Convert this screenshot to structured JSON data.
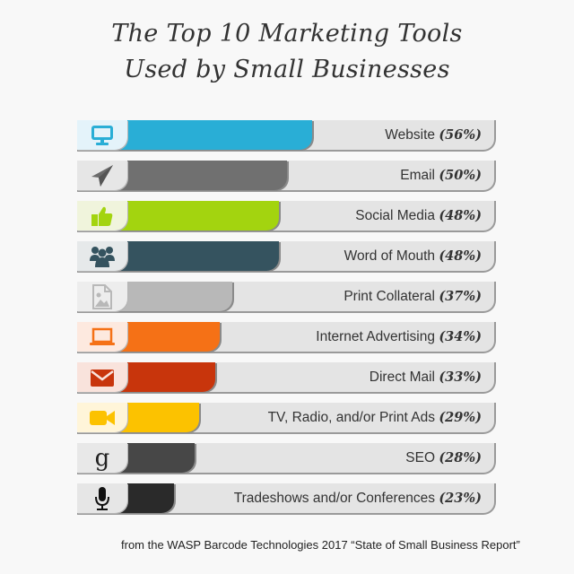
{
  "title": {
    "line1": "The Top 10 Marketing Tools",
    "line2": "Used by Small Businesses"
  },
  "source": "from the WASP Barcode Technologies 2017 “State of Small Business Report”",
  "chart_data": {
    "type": "bar",
    "orientation": "horizontal",
    "title": "The Top 10 Marketing Tools Used by Small Businesses",
    "xlabel": "",
    "ylabel": "",
    "unit": "%",
    "categories": [
      "Website",
      "Email",
      "Social Media",
      "Word of Mouth",
      "Print Collateral",
      "Internet Advertising",
      "Direct Mail",
      "TV, Radio, and/or Print Ads",
      "SEO",
      "Tradeshows and/or Conferences"
    ],
    "values": [
      56,
      50,
      48,
      48,
      37,
      34,
      33,
      29,
      28,
      23
    ],
    "colors": [
      "#29aed6",
      "#707070",
      "#a3d40f",
      "#35535f",
      "#b8b8b8",
      "#f57116",
      "#c8350c",
      "#fcc200",
      "#474747",
      "#2a2a2a"
    ],
    "icons": [
      "monitor-icon",
      "paper-plane-icon",
      "thumbs-up-icon",
      "users-group-icon",
      "image-file-icon",
      "laptop-icon",
      "envelope-icon",
      "video-camera-icon",
      "google-g-icon",
      "microphone-icon"
    ],
    "icon_bg": [
      "#e4f3fa",
      "#e6e6e6",
      "#f0f4dc",
      "#e6e9ea",
      "#ededed",
      "#fde9df",
      "#f9e3dc",
      "#fff5d9",
      "#e8e8e8",
      "#e6e6e6"
    ],
    "source": "WASP Barcode Technologies 2017 State of Small Business Report"
  },
  "rows": [
    {
      "label": "Website",
      "pct": "(56%)"
    },
    {
      "label": "Email",
      "pct": "(50%)"
    },
    {
      "label": "Social Media",
      "pct": "(48%)"
    },
    {
      "label": "Word of Mouth",
      "pct": "(48%)"
    },
    {
      "label": "Print Collateral",
      "pct": "(37%)"
    },
    {
      "label": "Internet Advertising",
      "pct": "(34%)"
    },
    {
      "label": "Direct Mail",
      "pct": "(33%)"
    },
    {
      "label": "TV, Radio, and/or Print Ads",
      "pct": "(29%)"
    },
    {
      "label": "SEO",
      "pct": "(28%)"
    },
    {
      "label": "Tradeshows and/or Conferences",
      "pct": "(23%)"
    }
  ]
}
